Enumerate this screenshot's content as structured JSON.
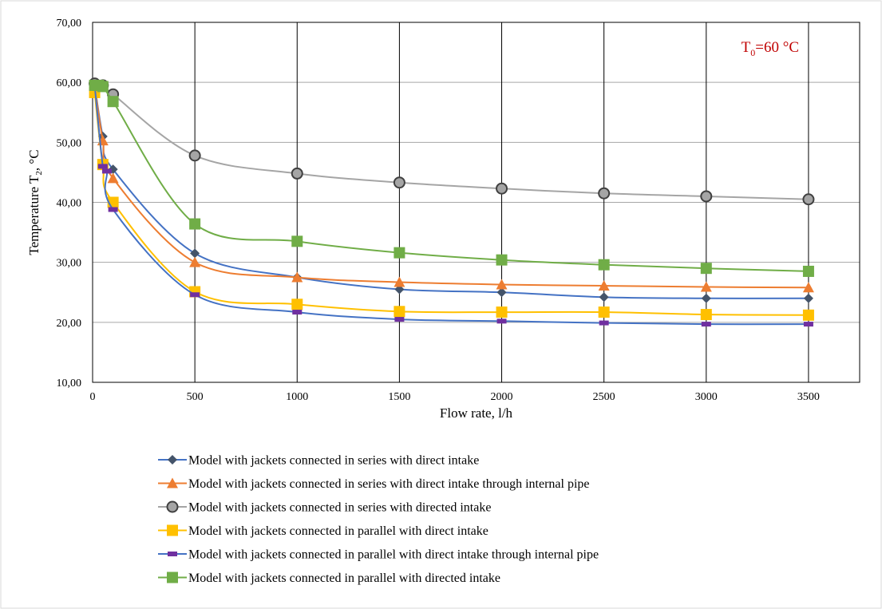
{
  "chart_data": {
    "type": "line",
    "title": "",
    "xlabel": "Flow rate, l/h",
    "ylabel": "Temperature T",
    "ylabel_subscript": "2",
    "ylabel_suffix": ", °C",
    "xlim": [
      0,
      3750
    ],
    "ylim": [
      10,
      70
    ],
    "x_ticks": [
      0,
      500,
      1000,
      1500,
      2000,
      2500,
      3000,
      3500
    ],
    "y_ticks": [
      10,
      20,
      30,
      40,
      50,
      60,
      70
    ],
    "y_tick_labels": [
      "10,00",
      "20,00",
      "30,00",
      "40,00",
      "50,00",
      "60,00",
      "70,00"
    ],
    "grid": {
      "horizontal": true,
      "vertical": true
    },
    "legend_position": "bottom",
    "annotation": {
      "prefix": "T",
      "subscript": "0",
      "suffix": "=60 °C",
      "color": "#c00000",
      "position": "top-right"
    },
    "series": [
      {
        "name": "Model with jackets connected in series with direct intake",
        "color": "#4472c4",
        "marker": "diamond",
        "marker_color": "#44546a",
        "x": [
          10,
          50,
          100,
          500,
          1000,
          1500,
          2000,
          2500,
          3000,
          3500
        ],
        "y": [
          59.5,
          51,
          45.5,
          31.5,
          27.5,
          25.5,
          25,
          24.2,
          24,
          24
        ]
      },
      {
        "name": "Model with jackets connected in series with direct intake through internal pipe",
        "color": "#ed7d31",
        "marker": "triangle",
        "marker_color": "#ed7d31",
        "x": [
          10,
          50,
          100,
          500,
          1000,
          1500,
          2000,
          2500,
          3000,
          3500
        ],
        "y": [
          59.5,
          50.3,
          44,
          30,
          27.5,
          26.7,
          26.3,
          26.1,
          25.9,
          25.8
        ]
      },
      {
        "name": "Model with jackets connected in series with directed intake",
        "color": "#a5a5a5",
        "marker": "circle",
        "marker_color": "#a5a5a5",
        "x": [
          10,
          50,
          100,
          500,
          1000,
          1500,
          2000,
          2500,
          3000,
          3500
        ],
        "y": [
          59.8,
          59.5,
          58,
          47.8,
          44.8,
          43.3,
          42.3,
          41.5,
          41,
          40.5
        ]
      },
      {
        "name": "Model with jackets connected in parallel with direct intake",
        "color": "#ffc000",
        "marker": "square",
        "marker_color": "#ffc000",
        "x": [
          10,
          50,
          100,
          500,
          1000,
          1500,
          2000,
          2500,
          3000,
          3500
        ],
        "y": [
          58.3,
          46.3,
          40,
          25.1,
          23,
          21.8,
          21.7,
          21.7,
          21.3,
          21.2
        ]
      },
      {
        "name": "Model with jackets connected in parallel with direct intake through internal pipe",
        "color": "#4472c4",
        "marker": "dash",
        "marker_color": "#7030a0",
        "x": [
          10,
          50,
          70,
          100,
          500,
          1000,
          1500,
          2000,
          2500,
          3000,
          3500
        ],
        "y": [
          59.5,
          46,
          45.2,
          38.8,
          24.6,
          21.7,
          20.5,
          20.2,
          19.9,
          19.7,
          19.7
        ]
      },
      {
        "name": "Model with jackets connected in parallel with directed intake",
        "color": "#70ad47",
        "marker": "square",
        "marker_color": "#70ad47",
        "x": [
          10,
          30,
          50,
          100,
          500,
          1000,
          1500,
          2000,
          2500,
          3000,
          3500
        ],
        "y": [
          59.5,
          59.5,
          59.3,
          56.8,
          36.4,
          33.5,
          31.6,
          30.4,
          29.6,
          29,
          28.5
        ]
      }
    ]
  }
}
